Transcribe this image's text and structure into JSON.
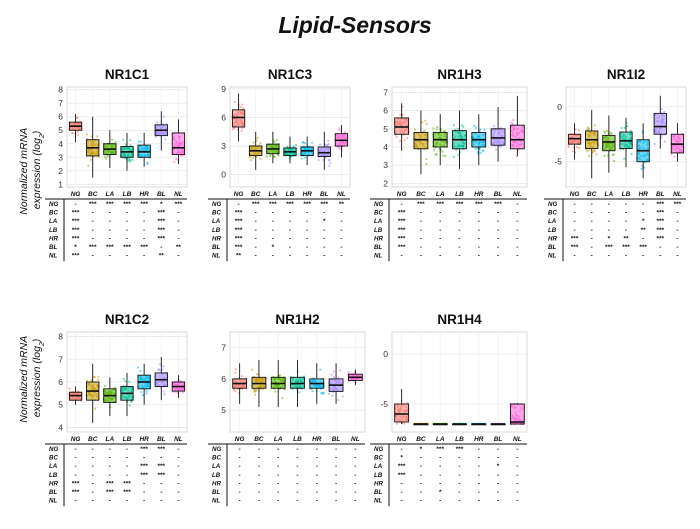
{
  "figure_title": "Lipid-Sensors",
  "ylabel_line1": "Normalized mRNA",
  "ylabel_line2": "expression (log",
  "ylabel_sub": "2",
  "ylabel_end": ")",
  "row_labels": [
    "NG",
    "BC",
    "LA",
    "LB",
    "HR",
    "BL",
    "NL"
  ],
  "colors": {
    "NG": "#f8766d",
    "BC": "#c49a00",
    "LA": "#53b400",
    "LB": "#00c094",
    "HR": "#00b6eb",
    "BL": "#a58aff",
    "NL": "#fb61d7"
  },
  "chart_data": [
    {
      "type": "box",
      "title": "NR1C1",
      "ylim": [
        0.8,
        8.2
      ],
      "yticks": [
        1,
        2,
        3,
        4,
        5,
        6,
        7,
        8
      ],
      "categories": [
        "NG",
        "BC",
        "LA",
        "LB",
        "HR",
        "BL",
        "NL"
      ],
      "boxes": [
        {
          "min": 4.1,
          "q1": 5.0,
          "median": 5.3,
          "q3": 5.6,
          "max": 6.2
        },
        {
          "min": 1.5,
          "q1": 3.1,
          "median": 3.7,
          "q3": 4.3,
          "max": 6.0
        },
        {
          "min": 2.2,
          "q1": 3.2,
          "median": 3.6,
          "q3": 4.0,
          "max": 5.0
        },
        {
          "min": 2.0,
          "q1": 3.0,
          "median": 3.4,
          "q3": 3.8,
          "max": 4.8
        },
        {
          "min": 2.3,
          "q1": 3.0,
          "median": 3.4,
          "q3": 3.9,
          "max": 4.8
        },
        {
          "min": 3.5,
          "q1": 4.6,
          "median": 5.0,
          "q3": 5.4,
          "max": 6.4
        },
        {
          "min": 2.5,
          "q1": 3.2,
          "median": 3.7,
          "q3": 4.8,
          "max": 5.8
        }
      ],
      "sig_matrix": [
        [
          "-",
          "***",
          "***",
          "***",
          "***",
          "*",
          "***"
        ],
        [
          "***",
          "-",
          "-",
          "-",
          "-",
          "***",
          "-"
        ],
        [
          "***",
          "-",
          "-",
          "-",
          "-",
          "***",
          "-"
        ],
        [
          "***",
          "-",
          "-",
          "-",
          "-",
          "***",
          "-"
        ],
        [
          "***",
          "-",
          "-",
          "-",
          "-",
          "***",
          "-"
        ],
        [
          "*",
          "***",
          "***",
          "***",
          "***",
          "-",
          "**"
        ],
        [
          "***",
          "-",
          "-",
          "-",
          "-",
          "**",
          "-"
        ]
      ]
    },
    {
      "type": "box",
      "title": "NR1C3",
      "ylim": [
        -1.3,
        9.2
      ],
      "yticks": [
        0,
        3,
        6,
        9
      ],
      "categories": [
        "NG",
        "BC",
        "LA",
        "LB",
        "HR",
        "BL",
        "NL"
      ],
      "boxes": [
        {
          "min": 3.5,
          "q1": 5.0,
          "median": 6.0,
          "q3": 6.8,
          "max": 8.5
        },
        {
          "min": 0.5,
          "q1": 2.0,
          "median": 2.5,
          "q3": 3.0,
          "max": 4.5
        },
        {
          "min": 1.2,
          "q1": 2.2,
          "median": 2.7,
          "q3": 3.2,
          "max": 4.5
        },
        {
          "min": 1.2,
          "q1": 2.0,
          "median": 2.4,
          "q3": 2.8,
          "max": 4.0
        },
        {
          "min": 1.0,
          "q1": 2.0,
          "median": 2.5,
          "q3": 2.9,
          "max": 4.0
        },
        {
          "min": 0.5,
          "q1": 1.9,
          "median": 2.3,
          "q3": 2.9,
          "max": 4.5
        },
        {
          "min": 1.8,
          "q1": 3.0,
          "median": 3.6,
          "q3": 4.3,
          "max": 5.2
        }
      ],
      "sig_matrix": [
        [
          "-",
          "***",
          "***",
          "***",
          "***",
          "***",
          "**"
        ],
        [
          "***",
          "-",
          "-",
          "-",
          "-",
          "-",
          "-"
        ],
        [
          "***",
          "-",
          "-",
          "-",
          "-",
          "*",
          "-"
        ],
        [
          "***",
          "-",
          "-",
          "-",
          "-",
          "-",
          "-"
        ],
        [
          "***",
          "-",
          "-",
          "-",
          "-",
          "-",
          "-"
        ],
        [
          "***",
          "-",
          "*",
          "-",
          "-",
          "-",
          "-"
        ],
        [
          "**",
          "-",
          "-",
          "-",
          "-",
          "-",
          "-"
        ]
      ]
    },
    {
      "type": "box",
      "title": "NR1H3",
      "ylim": [
        1.8,
        7.3
      ],
      "yticks": [
        2,
        3,
        4,
        5,
        6,
        7
      ],
      "categories": [
        "NG",
        "BC",
        "LA",
        "LB",
        "HR",
        "BL",
        "NL"
      ],
      "boxes": [
        {
          "min": 3.8,
          "q1": 4.7,
          "median": 5.1,
          "q3": 5.6,
          "max": 6.4
        },
        {
          "min": 2.5,
          "q1": 3.9,
          "median": 4.4,
          "q3": 4.8,
          "max": 6.0
        },
        {
          "min": 3.0,
          "q1": 4.0,
          "median": 4.4,
          "q3": 4.8,
          "max": 5.8
        },
        {
          "min": 2.8,
          "q1": 3.9,
          "median": 4.4,
          "q3": 4.9,
          "max": 6.0
        },
        {
          "min": 3.0,
          "q1": 4.0,
          "median": 4.4,
          "q3": 4.8,
          "max": 5.8
        },
        {
          "min": 3.2,
          "q1": 4.1,
          "median": 4.5,
          "q3": 5.0,
          "max": 6.2
        },
        {
          "min": 3.5,
          "q1": 3.9,
          "median": 4.4,
          "q3": 5.2,
          "max": 6.8
        }
      ],
      "sig_matrix": [
        [
          "-",
          "***",
          "***",
          "***",
          "***",
          "***",
          "-"
        ],
        [
          "***",
          "-",
          "-",
          "-",
          "-",
          "-",
          "-"
        ],
        [
          "***",
          "-",
          "-",
          "-",
          "-",
          "-",
          "-"
        ],
        [
          "***",
          "-",
          "-",
          "-",
          "-",
          "-",
          "-"
        ],
        [
          "***",
          "-",
          "-",
          "-",
          "-",
          "-",
          "-"
        ],
        [
          "***",
          "-",
          "-",
          "-",
          "-",
          "-",
          "-"
        ],
        [
          "-",
          "-",
          "-",
          "-",
          "-",
          "-",
          "-"
        ]
      ]
    },
    {
      "type": "box",
      "title": "NR1I2",
      "ylim": [
        -7.3,
        1.8
      ],
      "yticks": [
        -5,
        0
      ],
      "categories": [
        "NG",
        "BC",
        "LA",
        "LB",
        "HR",
        "BL",
        "NL"
      ],
      "boxes": [
        {
          "min": -4.8,
          "q1": -3.4,
          "median": -2.9,
          "q3": -2.5,
          "max": -1.5
        },
        {
          "min": -6.5,
          "q1": -3.8,
          "median": -3.0,
          "q3": -2.2,
          "max": -0.3
        },
        {
          "min": -6.0,
          "q1": -4.0,
          "median": -3.2,
          "q3": -2.6,
          "max": -0.8
        },
        {
          "min": -5.5,
          "q1": -3.8,
          "median": -3.1,
          "q3": -2.3,
          "max": -1.0
        },
        {
          "min": -6.5,
          "q1": -5.0,
          "median": -4.0,
          "q3": -3.0,
          "max": -1.5
        },
        {
          "min": -3.8,
          "q1": -2.5,
          "median": -1.8,
          "q3": -0.6,
          "max": 1.0
        },
        {
          "min": -5.0,
          "q1": -4.2,
          "median": -3.4,
          "q3": -2.5,
          "max": -1.5
        }
      ],
      "sig_matrix": [
        [
          "-",
          "-",
          "-",
          "-",
          "-",
          "***",
          "***"
        ],
        [
          "-",
          "-",
          "-",
          "-",
          "-",
          "***",
          "-"
        ],
        [
          "-",
          "-",
          "-",
          "-",
          "*",
          "***",
          "-"
        ],
        [
          "-",
          "-",
          "-",
          "-",
          "**",
          "***",
          "-"
        ],
        [
          "***",
          "-",
          "*",
          "**",
          "-",
          "***",
          "-"
        ],
        [
          "***",
          "-",
          "***",
          "***",
          "***",
          "-",
          "-"
        ],
        [
          "-",
          "-",
          "-",
          "-",
          "-",
          "-",
          "-"
        ]
      ]
    },
    {
      "type": "box",
      "title": "NR1C2",
      "ylim": [
        3.8,
        8.2
      ],
      "yticks": [
        4,
        5,
        6,
        7,
        8
      ],
      "categories": [
        "NG",
        "BC",
        "LA",
        "LB",
        "HR",
        "BL",
        "NL"
      ],
      "boxes": [
        {
          "min": 5.0,
          "q1": 5.2,
          "median": 5.4,
          "q3": 5.55,
          "max": 5.8
        },
        {
          "min": 4.2,
          "q1": 5.2,
          "median": 5.6,
          "q3": 6.0,
          "max": 6.8
        },
        {
          "min": 4.5,
          "q1": 5.1,
          "median": 5.4,
          "q3": 5.7,
          "max": 6.2
        },
        {
          "min": 4.5,
          "q1": 5.2,
          "median": 5.5,
          "q3": 5.8,
          "max": 6.4
        },
        {
          "min": 5.0,
          "q1": 5.7,
          "median": 6.0,
          "q3": 6.3,
          "max": 6.8
        },
        {
          "min": 5.2,
          "q1": 5.8,
          "median": 6.1,
          "q3": 6.4,
          "max": 7.1
        },
        {
          "min": 5.3,
          "q1": 5.6,
          "median": 5.8,
          "q3": 6.0,
          "max": 6.3
        }
      ],
      "sig_matrix": [
        [
          "-",
          "-",
          "-",
          "-",
          "***",
          "***",
          "-"
        ],
        [
          "-",
          "-",
          "-",
          "-",
          "-",
          "-",
          "-"
        ],
        [
          "-",
          "-",
          "-",
          "-",
          "***",
          "***",
          "-"
        ],
        [
          "-",
          "-",
          "-",
          "-",
          "***",
          "***",
          "-"
        ],
        [
          "***",
          "-",
          "***",
          "***",
          "-",
          "-",
          "-"
        ],
        [
          "***",
          "-",
          "***",
          "***",
          "-",
          "-",
          "-"
        ],
        [
          "-",
          "-",
          "-",
          "-",
          "-",
          "-",
          "-"
        ]
      ]
    },
    {
      "type": "box",
      "title": "NR1H2",
      "ylim": [
        4.3,
        7.5
      ],
      "yticks": [
        5,
        6,
        7
      ],
      "categories": [
        "NG",
        "BC",
        "LA",
        "LB",
        "HR",
        "BL",
        "NL"
      ],
      "boxes": [
        {
          "min": 5.2,
          "q1": 5.7,
          "median": 5.85,
          "q3": 6.0,
          "max": 6.5
        },
        {
          "min": 5.1,
          "q1": 5.7,
          "median": 5.85,
          "q3": 6.05,
          "max": 6.6
        },
        {
          "min": 5.1,
          "q1": 5.7,
          "median": 5.85,
          "q3": 6.05,
          "max": 6.6
        },
        {
          "min": 5.1,
          "q1": 5.7,
          "median": 5.85,
          "q3": 6.05,
          "max": 6.6
        },
        {
          "min": 5.2,
          "q1": 5.7,
          "median": 5.85,
          "q3": 6.0,
          "max": 6.5
        },
        {
          "min": 5.2,
          "q1": 5.6,
          "median": 5.8,
          "q3": 6.0,
          "max": 6.5
        },
        {
          "min": 5.8,
          "q1": 5.95,
          "median": 6.05,
          "q3": 6.15,
          "max": 6.3
        }
      ],
      "sig_matrix": [
        [
          "-",
          "-",
          "-",
          "-",
          "-",
          "-",
          "-"
        ],
        [
          "-",
          "-",
          "-",
          "-",
          "-",
          "-",
          "-"
        ],
        [
          "-",
          "-",
          "-",
          "-",
          "-",
          "-",
          "-"
        ],
        [
          "-",
          "-",
          "-",
          "-",
          "-",
          "-",
          "-"
        ],
        [
          "-",
          "-",
          "-",
          "-",
          "-",
          "-",
          "-"
        ],
        [
          "-",
          "-",
          "-",
          "-",
          "-",
          "-",
          "-"
        ],
        [
          "-",
          "-",
          "-",
          "-",
          "-",
          "-",
          "-"
        ]
      ]
    },
    {
      "type": "box",
      "title": "NR1H4",
      "ylim": [
        -7.8,
        2.2
      ],
      "yticks": [
        -5,
        0
      ],
      "categories": [
        "NG",
        "BC",
        "LA",
        "LB",
        "HR",
        "BL",
        "NL"
      ],
      "boxes": [
        {
          "min": -7.0,
          "q1": -6.8,
          "median": -6.0,
          "q3": -5.0,
          "max": -3.5
        },
        {
          "min": -7.0,
          "q1": -7.0,
          "median": -7.0,
          "q3": -7.0,
          "max": -7.0
        },
        {
          "min": -7.0,
          "q1": -7.0,
          "median": -7.0,
          "q3": -7.0,
          "max": -7.0
        },
        {
          "min": -7.0,
          "q1": -7.0,
          "median": -7.0,
          "q3": -7.0,
          "max": -7.0
        },
        {
          "min": -7.0,
          "q1": -7.0,
          "median": -7.0,
          "q3": -7.0,
          "max": -7.0
        },
        {
          "min": -7.0,
          "q1": -7.0,
          "median": -7.0,
          "q3": -7.0,
          "max": -7.0
        },
        {
          "min": -7.0,
          "q1": -7.0,
          "median": -6.8,
          "q3": -5.0,
          "max": -4.9
        }
      ],
      "sig_matrix": [
        [
          "-",
          "*",
          "***",
          "***",
          "-",
          "-",
          "-"
        ],
        [
          "*",
          "-",
          "-",
          "-",
          "-",
          "-",
          "-"
        ],
        [
          "***",
          "-",
          "-",
          "-",
          "-",
          "*",
          "-"
        ],
        [
          "***",
          "-",
          "-",
          "-",
          "-",
          "-",
          "-"
        ],
        [
          "-",
          "-",
          "-",
          "-",
          "-",
          "-",
          "-"
        ],
        [
          "-",
          "-",
          "*",
          "-",
          "-",
          "-",
          "-"
        ],
        [
          "-",
          "-",
          "-",
          "-",
          "-",
          "-",
          "-"
        ]
      ]
    }
  ]
}
